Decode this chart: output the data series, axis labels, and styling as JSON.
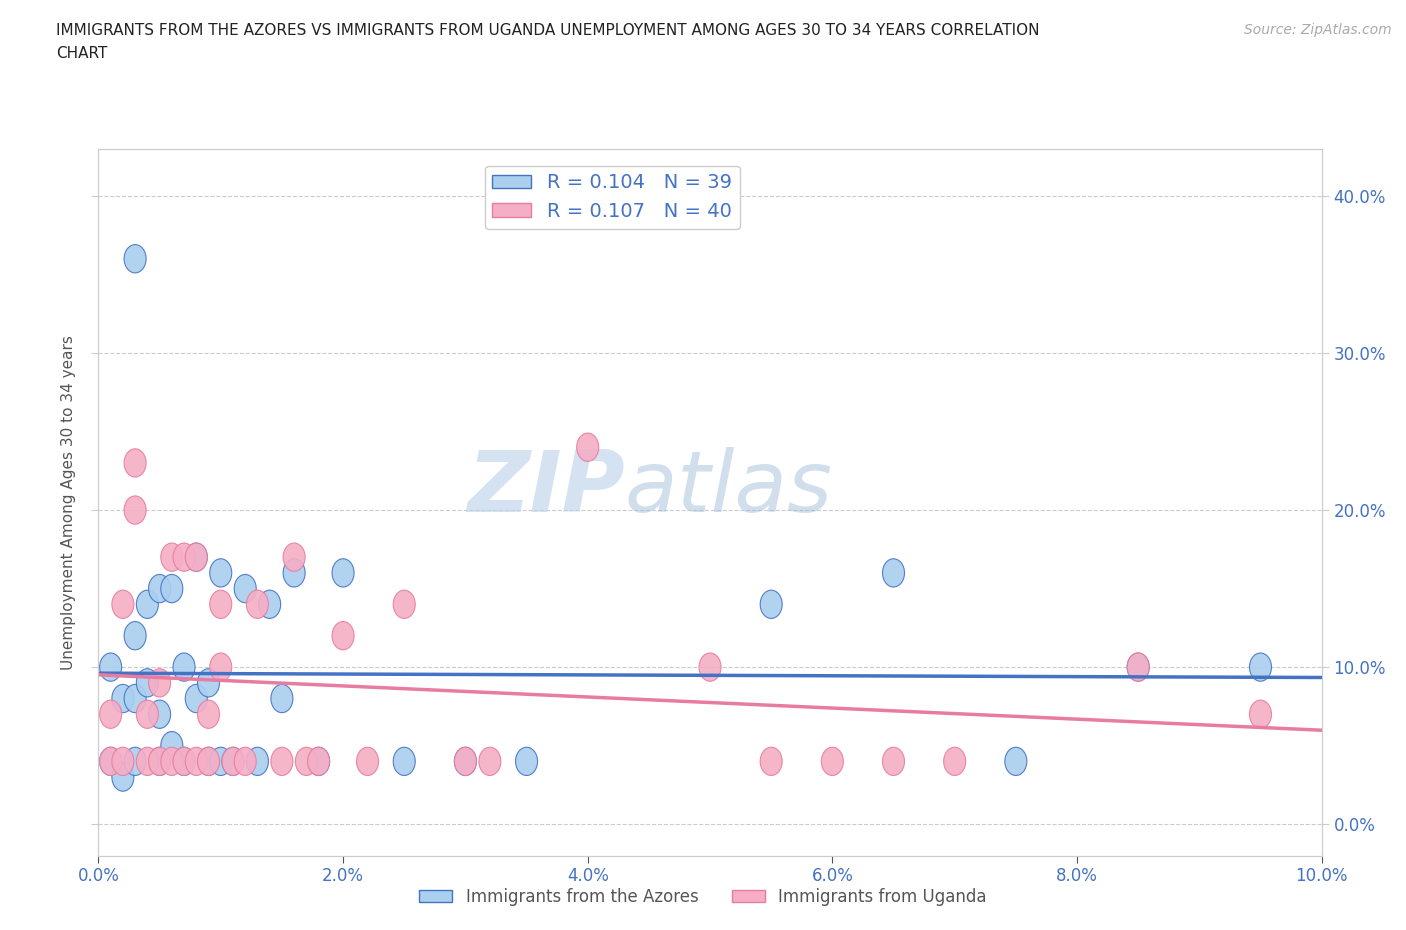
{
  "title_line1": "IMMIGRANTS FROM THE AZORES VS IMMIGRANTS FROM UGANDA UNEMPLOYMENT AMONG AGES 30 TO 34 YEARS CORRELATION",
  "title_line2": "CHART",
  "source_text": "Source: ZipAtlas.com",
  "ylabel": "Unemployment Among Ages 30 to 34 years",
  "xlim": [
    0.0,
    0.1
  ],
  "ylim": [
    -0.02,
    0.43
  ],
  "xticks": [
    0.0,
    0.02,
    0.04,
    0.06,
    0.08,
    0.1
  ],
  "yticks": [
    0.0,
    0.1,
    0.2,
    0.3,
    0.4
  ],
  "legend_azores": "Immigrants from the Azores",
  "legend_uganda": "Immigrants from Uganda",
  "r_azores": 0.104,
  "n_azores": 39,
  "r_uganda": 0.107,
  "n_uganda": 40,
  "color_azores": "#aacfef",
  "color_uganda": "#f5aec5",
  "line_color_azores": "#4472c4",
  "line_color_uganda": "#e87ca0",
  "background_color": "#ffffff",
  "watermark_zip": "ZIP",
  "watermark_atlas": "atlas",
  "azores_x": [
    0.001,
    0.001,
    0.002,
    0.002,
    0.003,
    0.003,
    0.003,
    0.004,
    0.004,
    0.005,
    0.005,
    0.005,
    0.006,
    0.006,
    0.007,
    0.007,
    0.008,
    0.008,
    0.009,
    0.009,
    0.01,
    0.01,
    0.011,
    0.012,
    0.013,
    0.014,
    0.015,
    0.016,
    0.018,
    0.02,
    0.025,
    0.03,
    0.035,
    0.055,
    0.065,
    0.075,
    0.085,
    0.095,
    0.003
  ],
  "azores_y": [
    0.04,
    0.1,
    0.03,
    0.08,
    0.04,
    0.08,
    0.12,
    0.09,
    0.14,
    0.04,
    0.07,
    0.15,
    0.05,
    0.15,
    0.04,
    0.1,
    0.08,
    0.17,
    0.04,
    0.09,
    0.04,
    0.16,
    0.04,
    0.15,
    0.04,
    0.14,
    0.08,
    0.16,
    0.04,
    0.16,
    0.04,
    0.04,
    0.04,
    0.14,
    0.16,
    0.04,
    0.1,
    0.1,
    0.36
  ],
  "uganda_x": [
    0.001,
    0.001,
    0.002,
    0.002,
    0.003,
    0.003,
    0.004,
    0.004,
    0.005,
    0.005,
    0.006,
    0.006,
    0.007,
    0.007,
    0.008,
    0.008,
    0.009,
    0.009,
    0.01,
    0.01,
    0.011,
    0.012,
    0.013,
    0.015,
    0.016,
    0.017,
    0.018,
    0.02,
    0.022,
    0.025,
    0.03,
    0.032,
    0.04,
    0.05,
    0.055,
    0.06,
    0.065,
    0.07,
    0.085,
    0.095
  ],
  "uganda_y": [
    0.04,
    0.07,
    0.04,
    0.14,
    0.2,
    0.23,
    0.04,
    0.07,
    0.04,
    0.09,
    0.04,
    0.17,
    0.04,
    0.17,
    0.04,
    0.17,
    0.04,
    0.07,
    0.1,
    0.14,
    0.04,
    0.04,
    0.14,
    0.04,
    0.17,
    0.04,
    0.04,
    0.12,
    0.04,
    0.14,
    0.04,
    0.04,
    0.24,
    0.1,
    0.04,
    0.04,
    0.04,
    0.04,
    0.1,
    0.07
  ]
}
